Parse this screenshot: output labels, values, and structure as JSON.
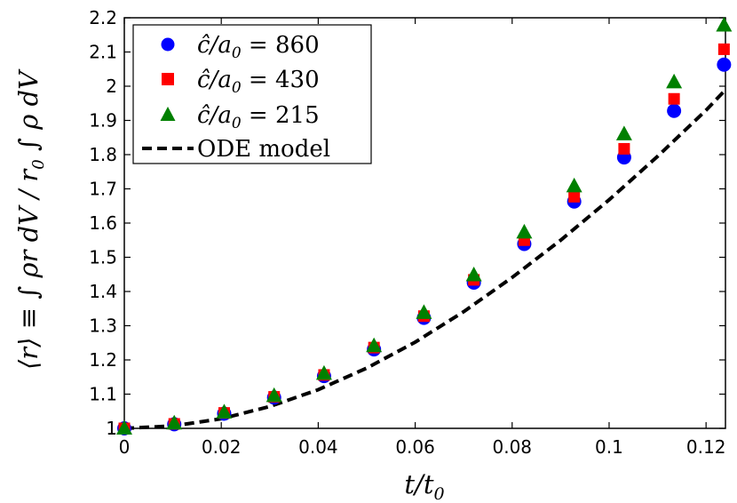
{
  "chart_data": {
    "type": "scatter",
    "xlabel": "t/t₀",
    "ylabel": "⟨r⟩ ≡ ∫ρr dV / r₀ ∫ρ dV",
    "xlim": [
      0,
      0.124
    ],
    "ylim": [
      1.0,
      2.2
    ],
    "xticks": [
      0,
      0.02,
      0.04,
      0.06,
      0.08,
      0.1,
      0.12
    ],
    "xtick_labels": [
      "0",
      "0.02",
      "0.04",
      "0.06",
      "0.08",
      "0.1",
      "0.12"
    ],
    "yticks": [
      1.0,
      1.1,
      1.2,
      1.3,
      1.4,
      1.5,
      1.6,
      1.7,
      1.8,
      1.9,
      2.0,
      2.1,
      2.2
    ],
    "ytick_labels": [
      "1",
      "1.1",
      "1.2",
      "1.3",
      "1.4",
      "1.5",
      "1.6",
      "1.7",
      "1.8",
      "1.9",
      "2",
      "2.1",
      "2.2"
    ],
    "legend_position": "top-left",
    "x": [
      0,
      0.0103,
      0.0206,
      0.0309,
      0.0412,
      0.0515,
      0.0618,
      0.0721,
      0.0825,
      0.0928,
      0.1031,
      0.1134,
      0.1237
    ],
    "series": [
      {
        "name": "ĉ/a₀ = 860",
        "marker": "circle",
        "color": "#0000ff",
        "values": [
          1.0,
          1.012,
          1.043,
          1.09,
          1.153,
          1.231,
          1.323,
          1.426,
          1.539,
          1.663,
          1.792,
          1.928,
          2.063
        ]
      },
      {
        "name": "ĉ/a₀ = 430",
        "marker": "square",
        "color": "#ff0000",
        "values": [
          1.0,
          1.013,
          1.045,
          1.092,
          1.156,
          1.236,
          1.328,
          1.434,
          1.55,
          1.677,
          1.817,
          1.963,
          2.108
        ]
      },
      {
        "name": "ĉ/a₀ = 215",
        "marker": "triangle",
        "color": "#008000",
        "values": [
          1.0,
          1.015,
          1.047,
          1.095,
          1.16,
          1.241,
          1.338,
          1.448,
          1.573,
          1.708,
          1.86,
          2.012,
          2.178
        ]
      },
      {
        "name": "ODE model",
        "marker": "dashed-line",
        "color": "#000000",
        "x": [
          0,
          0.01,
          0.02,
          0.03,
          0.04,
          0.05,
          0.06,
          0.07,
          0.08,
          0.09,
          0.1,
          0.11,
          0.12,
          0.1237
        ],
        "values": [
          1.0,
          1.007,
          1.028,
          1.064,
          1.113,
          1.176,
          1.252,
          1.341,
          1.441,
          1.55,
          1.668,
          1.795,
          1.93,
          1.985
        ]
      }
    ],
    "legend": {
      "math_prefix": "ĉ/a",
      "math_sub": "0",
      "equals": " = ",
      "values": [
        "860",
        "430",
        "215"
      ],
      "ode_label": "ODE model"
    },
    "axis_text": {
      "x_main": "t/t",
      "x_sub": "0",
      "y_main": "⟨r⟩ ≡ ∫ ρr dV / r",
      "y_sub": "0",
      "y_tail": " ∫ ρ dV"
    }
  }
}
